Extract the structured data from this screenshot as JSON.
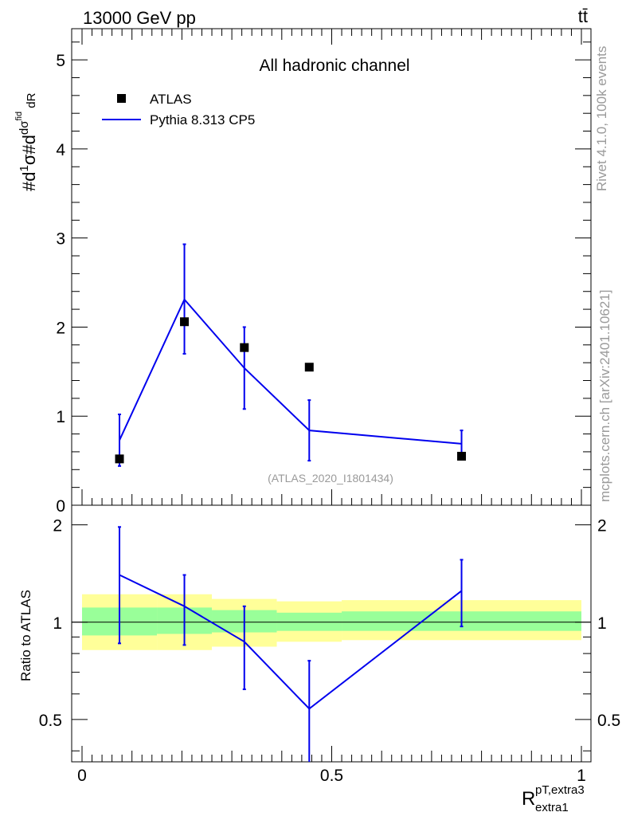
{
  "header": {
    "left": "13000 GeV pp",
    "right": "tt̄"
  },
  "side_text": {
    "rivet": "Rivet 4.1.0,  100k events",
    "mcplots": "mcplots.cern.ch [arXiv:2401.10621]"
  },
  "chart_data": [
    {
      "type": "scatter",
      "title": "All hadronic channel",
      "watermark": "(ATLAS_2020_I1801434)",
      "ylabel": "#dσ^{fid}/#dR / #d1/σ",
      "xlim": [
        0,
        1
      ],
      "ylim": [
        0,
        5.35
      ],
      "yticks": [
        0,
        1,
        2,
        3,
        4,
        5
      ],
      "legend": [
        "ATLAS",
        "Pythia 8.313 CP5"
      ],
      "legend_position": "top-left",
      "x": [
        0.075,
        0.205,
        0.325,
        0.455,
        0.76
      ],
      "series": [
        {
          "name": "ATLAS",
          "kind": "markers",
          "color": "#000000",
          "values": [
            0.52,
            2.06,
            1.77,
            1.55,
            0.55
          ]
        },
        {
          "name": "Pythia 8.313 CP5",
          "kind": "line",
          "color": "#0000ee",
          "values": [
            0.73,
            2.31,
            1.54,
            0.84,
            0.69
          ],
          "err_low": [
            0.29,
            0.61,
            0.46,
            0.34,
            0.13
          ],
          "err_high": [
            0.29,
            0.62,
            0.46,
            0.34,
            0.15
          ]
        }
      ]
    },
    {
      "type": "line",
      "ylabel": "Ratio to ATLAS",
      "xlabel": "R_{extra1}^{pT,extra3}",
      "xlim": [
        0,
        1
      ],
      "ylim": [
        0.37,
        2.3
      ],
      "yscale": "log",
      "xticks": [
        0,
        0.5,
        1
      ],
      "xtick_labels": [
        "0",
        "0.5",
        "1"
      ],
      "yticks": [
        0.5,
        1,
        2
      ],
      "ytick_labels": [
        "0.5",
        "1",
        "2"
      ],
      "reference_line": 1,
      "bands": {
        "bins": [
          0,
          0.15,
          0.26,
          0.39,
          0.52,
          1.0
        ],
        "outer": {
          "color": "#ffff99",
          "low": [
            0.82,
            0.82,
            0.84,
            0.87,
            0.88,
            0.88
          ],
          "high": [
            1.22,
            1.22,
            1.18,
            1.16,
            1.17,
            1.17
          ]
        },
        "inner": {
          "color": "#99ff99",
          "low": [
            0.91,
            0.92,
            0.93,
            0.94,
            0.94,
            0.94
          ],
          "high": [
            1.11,
            1.11,
            1.09,
            1.07,
            1.08,
            1.08
          ]
        }
      },
      "x": [
        0.075,
        0.205,
        0.325,
        0.455,
        0.76
      ],
      "series": [
        {
          "name": "Pythia 8.313 CP5",
          "color": "#0000ee",
          "values": [
            1.4,
            1.12,
            0.87,
            0.54,
            1.25
          ],
          "err_low": [
            0.54,
            0.27,
            0.25,
            0.2,
            0.28
          ],
          "err_high": [
            0.57,
            0.28,
            0.25,
            0.22,
            0.31
          ]
        }
      ]
    }
  ]
}
